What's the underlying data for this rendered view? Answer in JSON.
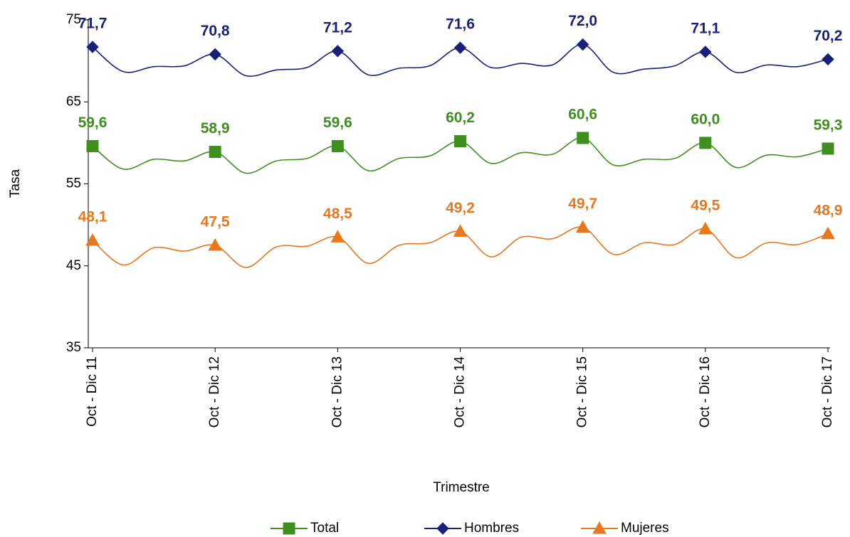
{
  "chart_data": {
    "type": "line",
    "x_label": "Trimestre",
    "y_label": "Tasa",
    "categories": [
      "Oct - Dic 11",
      null,
      null,
      null,
      "Oct - Dic 12",
      null,
      null,
      null,
      "Oct - Dic 13",
      null,
      null,
      null,
      "Oct - Dic 14",
      null,
      null,
      null,
      "Oct - Dic 15",
      null,
      null,
      null,
      "Oct - Dic 16",
      null,
      null,
      null,
      "Oct - Dic 17"
    ],
    "series": [
      {
        "name": "Total",
        "color": "#3f8f1f",
        "marker": "square",
        "values": [
          59.6,
          56.8,
          58.0,
          57.8,
          58.9,
          56.3,
          57.8,
          58.1,
          59.6,
          56.6,
          58.1,
          58.4,
          60.2,
          57.5,
          58.8,
          58.6,
          60.6,
          57.3,
          58.0,
          58.1,
          60.0,
          57.0,
          58.5,
          58.3,
          59.3
        ],
        "value_labels": [
          "59,6",
          null,
          null,
          null,
          "58,9",
          null,
          null,
          null,
          "59,6",
          null,
          null,
          null,
          "60,2",
          null,
          null,
          null,
          "60,6",
          null,
          null,
          null,
          "60,0",
          null,
          null,
          null,
          "59,3"
        ]
      },
      {
        "name": "Hombres",
        "color": "#1a1f7a",
        "marker": "diamond",
        "values": [
          71.7,
          68.7,
          69.3,
          69.4,
          70.8,
          68.2,
          68.9,
          69.2,
          71.2,
          68.3,
          69.1,
          69.4,
          71.6,
          69.2,
          69.7,
          69.5,
          72.0,
          68.6,
          69.0,
          69.4,
          71.1,
          68.6,
          69.5,
          69.3,
          70.2
        ],
        "value_labels": [
          "71,7",
          null,
          null,
          null,
          "70,8",
          null,
          null,
          null,
          "71,2",
          null,
          null,
          null,
          "71,6",
          null,
          null,
          null,
          "72,0",
          null,
          null,
          null,
          "71,1",
          null,
          null,
          null,
          "70,2"
        ]
      },
      {
        "name": "Mujeres",
        "color": "#e8771e",
        "marker": "triangle",
        "values": [
          48.1,
          45.1,
          47.2,
          46.8,
          47.5,
          44.8,
          47.3,
          47.4,
          48.5,
          45.3,
          47.5,
          47.8,
          49.2,
          46.1,
          48.5,
          48.3,
          49.7,
          46.4,
          47.8,
          47.6,
          49.5,
          46.0,
          47.8,
          47.6,
          48.9
        ],
        "value_labels": [
          "48,1",
          null,
          null,
          null,
          "47,5",
          null,
          null,
          null,
          "48,5",
          null,
          null,
          null,
          "49,2",
          null,
          null,
          null,
          "49,7",
          null,
          null,
          null,
          "49,5",
          null,
          null,
          null,
          "48,9"
        ]
      }
    ],
    "ylim": [
      35,
      75
    ],
    "yticks": [
      35,
      45,
      55,
      65,
      75
    ],
    "legend": "bottom"
  }
}
